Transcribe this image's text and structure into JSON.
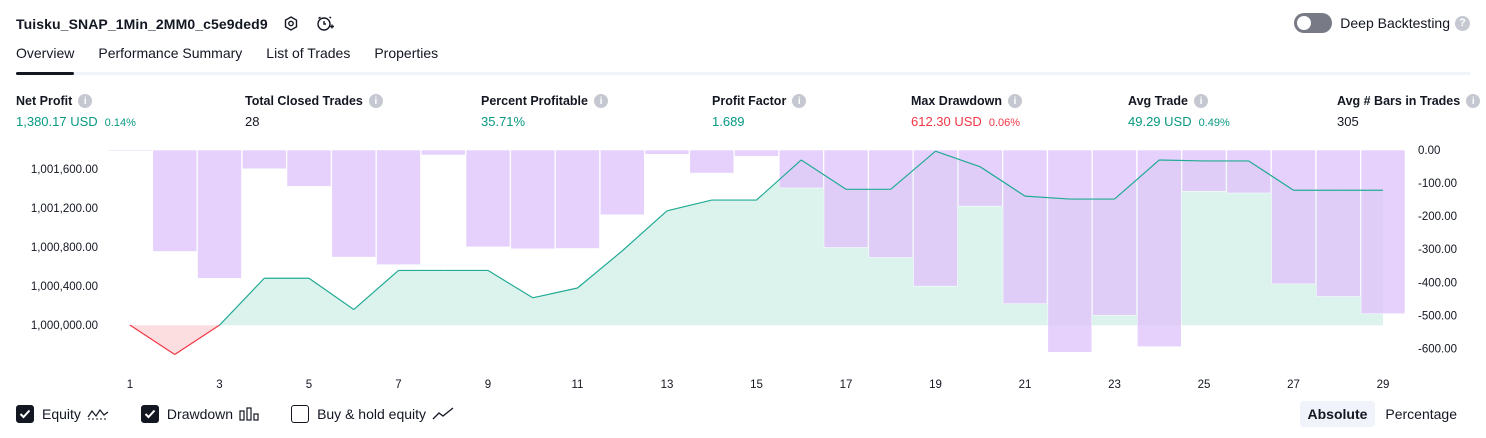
{
  "header": {
    "title": "Tuisku_SNAP_1Min_2MM0_c5e9ded9",
    "deep_backtesting_label": "Deep Backtesting",
    "help_glyph": "?"
  },
  "tabs": [
    "Overview",
    "Performance Summary",
    "List of Trades",
    "Properties"
  ],
  "metrics": [
    {
      "label": "Net Profit",
      "value": "1,380.17 USD",
      "pct": "0.14%",
      "color": "green"
    },
    {
      "label": "Total Closed Trades",
      "value": "28",
      "pct": "",
      "color": "dark"
    },
    {
      "label": "Percent Profitable",
      "value": "35.71%",
      "pct": "",
      "color": "green"
    },
    {
      "label": "Profit Factor",
      "value": "1.689",
      "pct": "",
      "color": "green"
    },
    {
      "label": "Max Drawdown",
      "value": "612.30 USD",
      "pct": "0.06%",
      "color": "red"
    },
    {
      "label": "Avg Trade",
      "value": "49.29 USD",
      "pct": "0.49%",
      "color": "green"
    },
    {
      "label": "Avg # Bars in Trades",
      "value": "305",
      "pct": "",
      "color": "dark"
    }
  ],
  "legend": {
    "equity": "Equity",
    "drawdown": "Drawdown",
    "buy_hold": "Buy & hold equity"
  },
  "view_modes": {
    "absolute": "Absolute",
    "percentage": "Percentage"
  },
  "colors": {
    "equity_line": "#22ab94",
    "equity_fill": "#d6f1ea",
    "equity_loss_line": "#f23645",
    "equity_loss_fill": "#fcdadd",
    "drawdown_bar": "#e0c3fc",
    "accent": "#131722"
  },
  "chart_data": {
    "type": "area",
    "x": [
      1,
      2,
      3,
      4,
      5,
      6,
      7,
      8,
      9,
      10,
      11,
      12,
      13,
      14,
      15,
      16,
      17,
      18,
      19,
      20,
      21,
      22,
      23,
      24,
      25,
      26,
      27,
      28,
      29
    ],
    "x_tick_labels": [
      "1",
      "3",
      "5",
      "7",
      "9",
      "11",
      "13",
      "15",
      "17",
      "19",
      "21",
      "23",
      "25",
      "27",
      "29"
    ],
    "series": [
      {
        "name": "Equity",
        "axis": "left",
        "values": [
          1000000,
          999700,
          1000000,
          1000480,
          1000480,
          1000160,
          1000560,
          1000560,
          1000560,
          1000280,
          1000380,
          1000760,
          1001170,
          1001280,
          1001280,
          1001690,
          1001390,
          1001390,
          1001780,
          1001620,
          1001320,
          1001290,
          1001290,
          1001690,
          1001680,
          1001680,
          1001380,
          1001380,
          1001380
        ]
      },
      {
        "name": "Drawdown",
        "axis": "right",
        "values": [
          -3,
          -307,
          -388,
          -57,
          -110,
          -324,
          -347,
          -15,
          -293,
          -299,
          -298,
          -196,
          -13,
          -70,
          -19,
          -115,
          -295,
          -325,
          -412,
          -170,
          -465,
          -612,
          -500,
          -595,
          -125,
          -130,
          -405,
          -443,
          -495
        ]
      }
    ],
    "left_axis_ticks": [
      "1,000,000.00",
      "1,000,400.00",
      "1,000,800.00",
      "1,001,200.00",
      "1,001,600.00"
    ],
    "left_axis_values": [
      1000000,
      1000400,
      1000800,
      1001200,
      1001600
    ],
    "right_axis_ticks": [
      "0.00",
      "-100.00",
      "-200.00",
      "-300.00",
      "-400.00",
      "-500.00",
      "-600.00"
    ],
    "right_axis_values": [
      0,
      -100,
      -200,
      -300,
      -400,
      -500,
      -600
    ],
    "ylim_left": [
      999705,
      1001792
    ],
    "ylim_right": [
      -617,
      0
    ]
  }
}
